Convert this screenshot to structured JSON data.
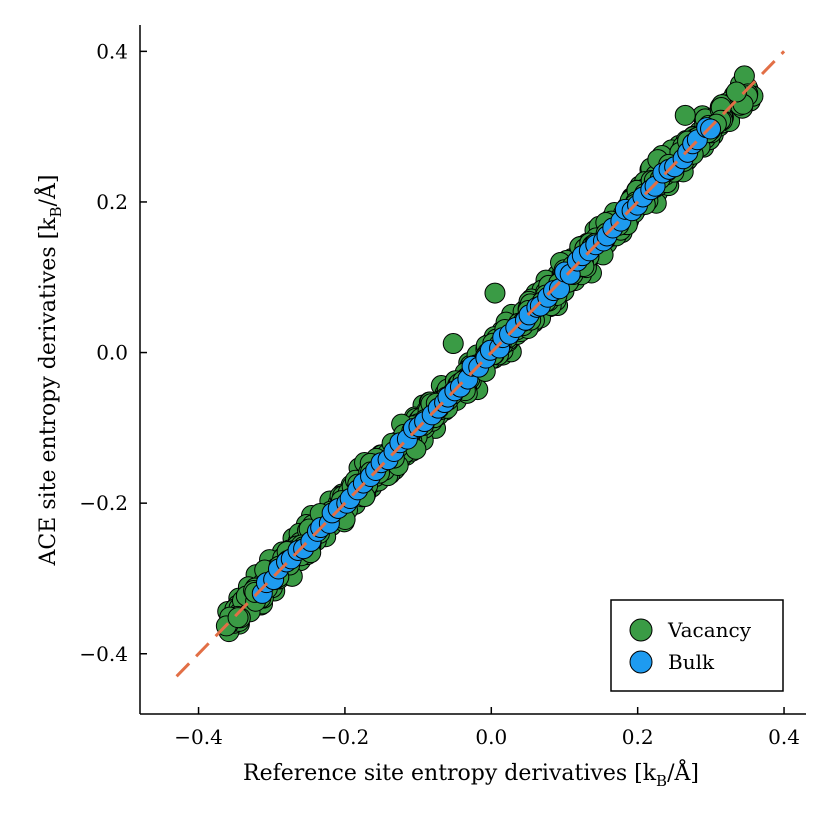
{
  "chart_data": {
    "type": "scatter",
    "title": "",
    "xlabel": "Reference site entropy derivatives [k_B/Å]",
    "ylabel": "ACE site entropy derivatives [k_B/Å]",
    "xlim": [
      -0.48,
      0.43
    ],
    "ylim": [
      -0.48,
      0.435
    ],
    "x_ticks": [
      -0.4,
      -0.2,
      0.0,
      0.2,
      0.4
    ],
    "y_ticks": [
      -0.4,
      -0.2,
      0.0,
      0.2,
      0.4
    ],
    "x_tick_labels": [
      "−0.4",
      "−0.2",
      "0.0",
      "0.2",
      "0.4"
    ],
    "y_tick_labels": [
      "−0.4",
      "−0.2",
      "0.0",
      "0.2",
      "0.4"
    ],
    "label_parts": {
      "x_prefix": "Reference site entropy derivatives [k",
      "y_prefix": "ACE site entropy derivatives [k",
      "subscript": "B",
      "suffix": "/Å]"
    },
    "grid": false,
    "legend_position": "bottom-right",
    "reference_line": {
      "style": "dashed",
      "color": "#e26f46",
      "x": [
        -0.43,
        0.4
      ],
      "y": [
        -0.43,
        0.4
      ]
    },
    "series": [
      {
        "name": "Vacancy",
        "color": "#3a9b45",
        "x_range": [
          -0.36,
          0.35
        ],
        "spread": 0.013,
        "count": 900,
        "outliers": [
          [
            0.005,
            0.079
          ],
          [
            -0.052,
            0.012
          ],
          [
            0.335,
            0.346
          ],
          [
            -0.362,
            -0.363
          ],
          [
            -0.346,
            -0.352
          ],
          [
            0.265,
            0.315
          ]
        ]
      },
      {
        "name": "Bulk",
        "color": "#1e9bf0",
        "x_range": [
          -0.315,
          0.3
        ],
        "spread": 0.004,
        "count": 75,
        "outliers": []
      }
    ]
  },
  "legend": {
    "items": [
      {
        "label": "Vacancy",
        "color": "#3a9b45"
      },
      {
        "label": "Bulk",
        "color": "#1e9bf0"
      }
    ]
  }
}
